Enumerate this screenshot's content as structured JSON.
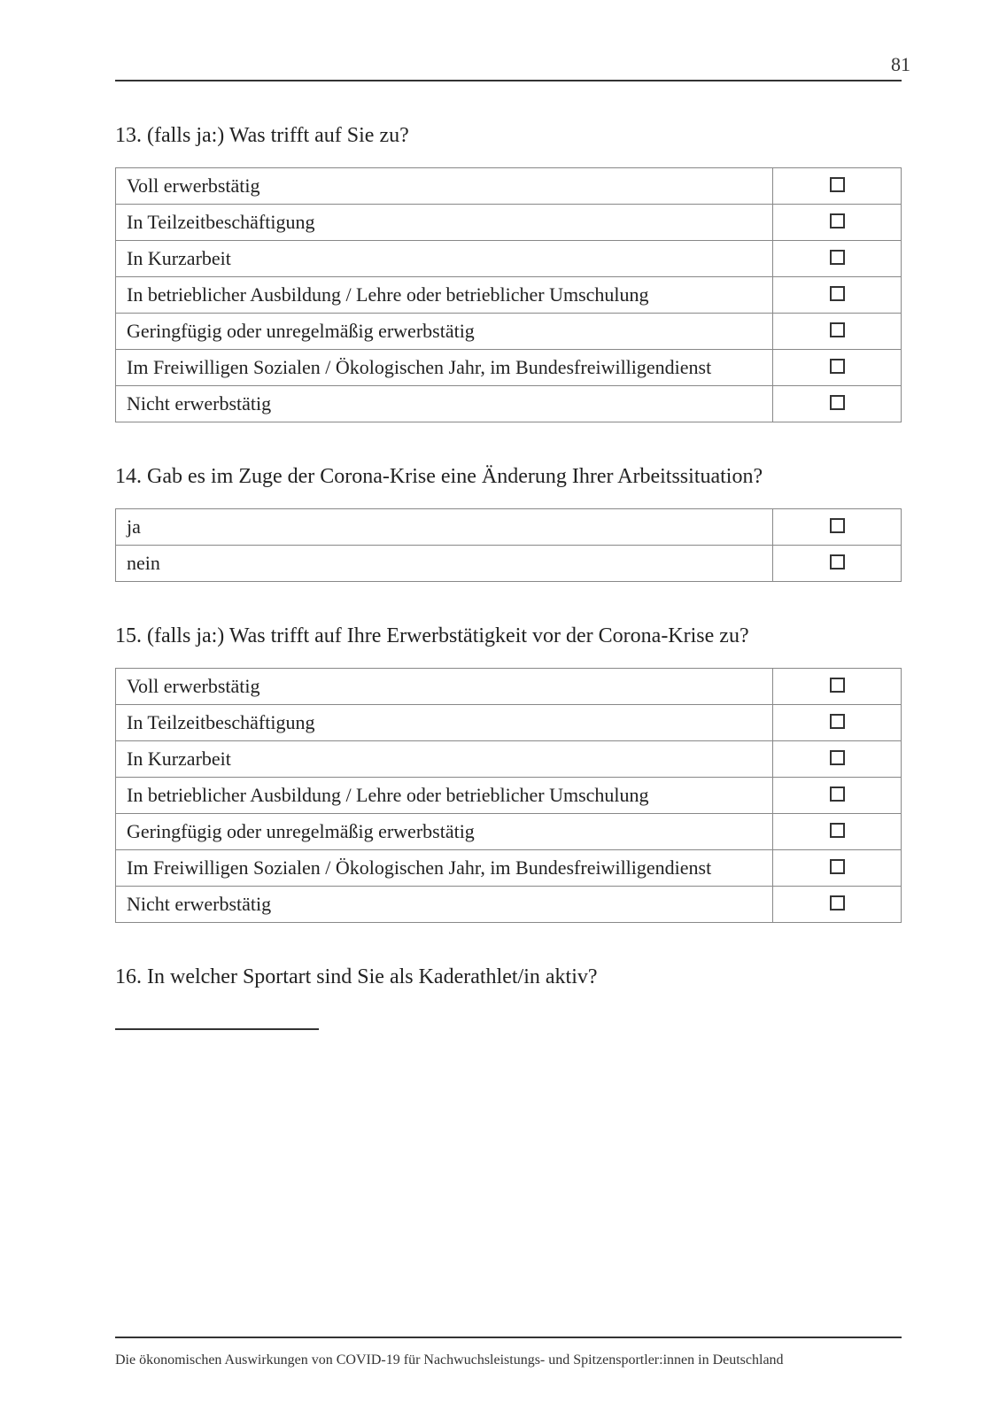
{
  "page_number": "81",
  "footer": "Die ökonomischen Auswirkungen von COVID-19 für Nachwuchsleistungs- und Spitzensportler:innen in Deutschland",
  "q13": {
    "title": "13. (falls ja:) Was trifft auf Sie zu?",
    "rows": [
      "Voll erwerbstätig",
      "In Teilzeitbeschäftigung",
      "In Kurzarbeit",
      "In betrieblicher Ausbildung / Lehre oder betrieblicher Umschulung",
      "Geringfügig oder unregelmäßig erwerbstätig",
      "Im Freiwilligen Sozialen / Ökologischen Jahr, im Bundesfreiwilligendienst",
      "Nicht erwerbstätig"
    ]
  },
  "q14": {
    "title": "14. Gab es im Zuge der Corona-Krise eine Änderung Ihrer Arbeitssituation?",
    "rows": [
      "ja",
      "nein"
    ]
  },
  "q15": {
    "title": "15. (falls ja:) Was trifft auf Ihre Erwerbstätigkeit vor der Corona-Krise zu?",
    "rows": [
      "Voll erwerbstätig",
      "In Teilzeitbeschäftigung",
      "In Kurzarbeit",
      "In betrieblicher Ausbildung / Lehre oder betrieblicher Umschulung",
      "Geringfügig oder unregelmäßig erwerbstätig",
      "Im Freiwilligen Sozialen / Ökologischen Jahr, im Bundesfreiwilligendienst",
      "Nicht erwerbstätig"
    ]
  },
  "q16": {
    "title": "16. In welcher Sportart sind Sie als Kaderathlet/in aktiv?"
  },
  "style": {
    "checkbox_border": "#333333",
    "table_border": "#888888",
    "text_color": "#222222",
    "background": "#ffffff"
  }
}
